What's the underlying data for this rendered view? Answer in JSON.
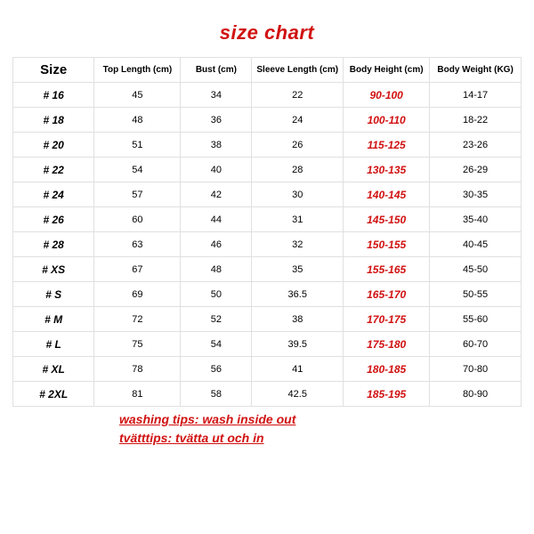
{
  "title": "size chart",
  "title_color": "#d11111",
  "accent_color": "#d11111",
  "border_color": "#e0e0e0",
  "background_color": "#ffffff",
  "text_color": "#000000",
  "columns": [
    "Size",
    "Top Length (cm)",
    "Bust (cm)",
    "Sleeve Length (cm)",
    "Body Height (cm)",
    "Body Weight (KG)"
  ],
  "rows": [
    {
      "size": "# 16",
      "top": "45",
      "bust": "34",
      "sleeve": "22",
      "height": "90-100",
      "weight": "14-17"
    },
    {
      "size": "# 18",
      "top": "48",
      "bust": "36",
      "sleeve": "24",
      "height": "100-110",
      "weight": "18-22"
    },
    {
      "size": "# 20",
      "top": "51",
      "bust": "38",
      "sleeve": "26",
      "height": "115-125",
      "weight": "23-26"
    },
    {
      "size": "# 22",
      "top": "54",
      "bust": "40",
      "sleeve": "28",
      "height": "130-135",
      "weight": "26-29"
    },
    {
      "size": "# 24",
      "top": "57",
      "bust": "42",
      "sleeve": "30",
      "height": "140-145",
      "weight": "30-35"
    },
    {
      "size": "# 26",
      "top": "60",
      "bust": "44",
      "sleeve": "31",
      "height": "145-150",
      "weight": "35-40"
    },
    {
      "size": "# 28",
      "top": "63",
      "bust": "46",
      "sleeve": "32",
      "height": "150-155",
      "weight": "40-45"
    },
    {
      "size": "# XS",
      "top": "67",
      "bust": "48",
      "sleeve": "35",
      "height": "155-165",
      "weight": "45-50"
    },
    {
      "size": "# S",
      "top": "69",
      "bust": "50",
      "sleeve": "36.5",
      "height": "165-170",
      "weight": "50-55"
    },
    {
      "size": "# M",
      "top": "72",
      "bust": "52",
      "sleeve": "38",
      "height": "170-175",
      "weight": "55-60"
    },
    {
      "size": "# L",
      "top": "75",
      "bust": "54",
      "sleeve": "39.5",
      "height": "175-180",
      "weight": "60-70"
    },
    {
      "size": "# XL",
      "top": "78",
      "bust": "56",
      "sleeve": "41",
      "height": "180-185",
      "weight": "70-80"
    },
    {
      "size": "# 2XL",
      "top": "81",
      "bust": "58",
      "sleeve": "42.5",
      "height": "185-195",
      "weight": "80-90"
    }
  ],
  "tips": [
    "washing tips: wash inside out",
    "tvätttips: tvätta ut och in"
  ]
}
